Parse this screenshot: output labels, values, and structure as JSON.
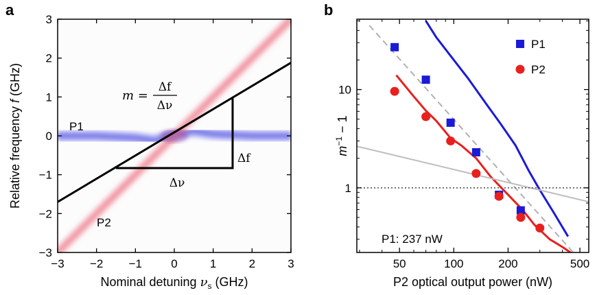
{
  "chart_data": [
    {
      "panel": "a",
      "type": "heatmap",
      "xlabel_text": "Nominal detuning ",
      "xlabel_var": "ν",
      "xlabel_sub": "s",
      "xlabel_unit": " (GHz)",
      "ylabel_text": "Relative frequency ",
      "ylabel_var": "f",
      "ylabel_unit": " (GHz)",
      "xlim": [
        -3,
        3
      ],
      "ylim": [
        -3,
        3
      ],
      "xticks": [
        -3,
        -2,
        -1,
        0,
        1,
        2,
        3
      ],
      "yticks": [
        -3,
        -2,
        -1,
        0,
        1,
        2,
        3
      ],
      "xtick_labels": [
        "−3",
        "−2",
        "−1",
        "0",
        "1",
        "2",
        "3"
      ],
      "ytick_labels": [
        "−3",
        "−2",
        "−1",
        "0",
        "1",
        "2",
        "3"
      ],
      "series": [
        {
          "name": "P1",
          "color": "#6a6ae8",
          "x": [
            -3,
            -2,
            -1,
            -0.5,
            0,
            0.5,
            1,
            2,
            3
          ],
          "y": [
            0,
            0,
            -0.05,
            -0.12,
            0.05,
            0.12,
            0.05,
            0,
            0
          ]
        },
        {
          "name": "P2",
          "color": "#f08c98",
          "x": [
            -3,
            3
          ],
          "y": [
            -3,
            3
          ]
        }
      ],
      "fit_line": {
        "x": [
          -3,
          3
        ],
        "y": [
          -1.7,
          1.88
        ],
        "color": "#000000"
      },
      "triangle": {
        "x1": -1.5,
        "x2": 1.5,
        "y1": -0.83,
        "y2": 0.99
      },
      "annotations": {
        "m_lhs": "m = ",
        "m_num": "Δf",
        "m_den": "Δν",
        "delta_f": "Δf",
        "delta_nu": "Δν",
        "p1_label": "P1",
        "p2_label": "P2"
      }
    },
    {
      "panel": "b",
      "type": "scatter",
      "xlabel": "P2 optical output power (nW)",
      "ylabel_m": "m",
      "ylabel_sup": "−1",
      "ylabel_rest": " − 1",
      "xscale": "log",
      "yscale": "log",
      "xlim": [
        29,
        560
      ],
      "ylim": [
        0.22,
        52
      ],
      "xticks": [
        50,
        100,
        200,
        500
      ],
      "yticks": [
        1,
        10
      ],
      "xtick_labels": [
        "50",
        "100",
        "200",
        "500"
      ],
      "ytick_labels": [
        "1",
        "10"
      ],
      "series": [
        {
          "name": "P1",
          "marker": "square",
          "color": "#1a1ad8",
          "x": [
            47,
            70,
            96,
            133,
            178,
            235
          ],
          "y": [
            27,
            12.6,
            4.6,
            2.3,
            0.85,
            0.59
          ]
        },
        {
          "name": "P2",
          "marker": "circle",
          "color": "#e8201e",
          "x": [
            47,
            70,
            96,
            133,
            178,
            235,
            300
          ],
          "y": [
            9.6,
            5.3,
            3.0,
            1.4,
            0.82,
            0.5,
            0.39
          ]
        }
      ],
      "lines": [
        {
          "name": "P1 model",
          "color": "#1a1ad8",
          "style": "solid",
          "x": [
            70,
            80,
            100,
            120,
            150,
            180,
            220,
            260,
            300,
            360,
            430
          ],
          "y": [
            50,
            34,
            20,
            13,
            7.3,
            4.6,
            2.7,
            1.5,
            0.95,
            0.55,
            0.32
          ]
        },
        {
          "name": "P2 model",
          "color": "#e8201e",
          "style": "solid",
          "x": [
            48,
            60,
            70,
            80,
            96,
            110,
            133,
            160,
            200,
            240,
            280,
            340,
            400,
            460
          ],
          "y": [
            14,
            8.5,
            6.1,
            4.8,
            3.2,
            2.7,
            2.0,
            1.3,
            0.85,
            0.6,
            0.42,
            0.3,
            0.25,
            0.21
          ]
        },
        {
          "name": "dashed guide",
          "color": "#b0b0b0",
          "style": "dashed",
          "x": [
            34,
            470
          ],
          "y": [
            45,
            0.21
          ]
        },
        {
          "name": "grey line",
          "color": "#bdbdbd",
          "style": "solid",
          "x": [
            29,
            560
          ],
          "y": [
            2.65,
            0.72
          ]
        },
        {
          "name": "unity",
          "color": "#555555",
          "style": "dotted",
          "x": [
            29,
            560
          ],
          "y": [
            1,
            1
          ]
        }
      ],
      "legend": {
        "placement": "top-right",
        "items": [
          "P1",
          "P2"
        ]
      },
      "annotation": "P1: 237 nW"
    }
  ]
}
